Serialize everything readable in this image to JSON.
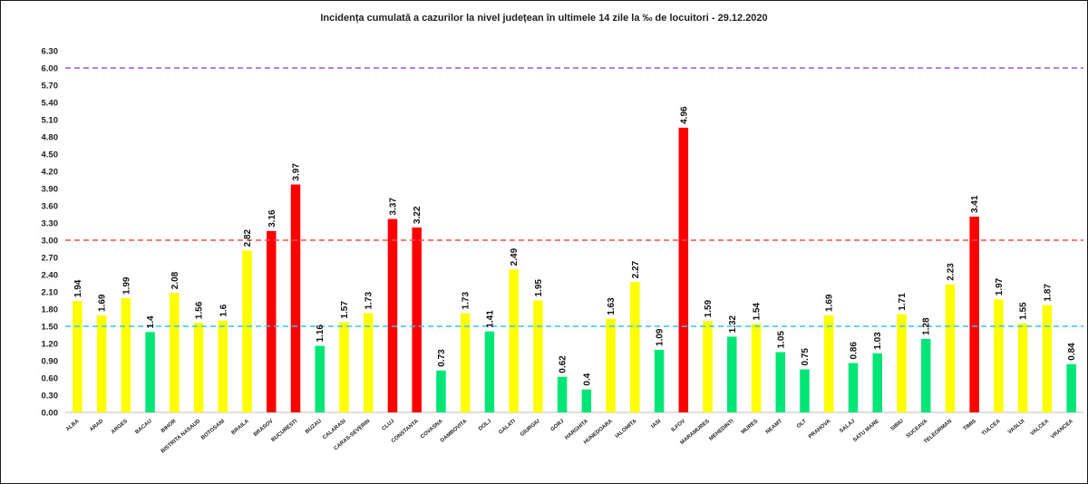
{
  "chart_data": {
    "type": "bar",
    "title": "Incidența cumulată a cazurilor la nivel județean în ultimele 14 zile   la ‰ de locuitori  - 29.12.2020",
    "xlabel": "",
    "ylabel": "",
    "ylim": [
      0,
      6.3
    ],
    "yticks": [
      "0.00",
      "0.30",
      "0.60",
      "0.90",
      "1.20",
      "1.50",
      "1.80",
      "2.10",
      "2.40",
      "2.70",
      "3.00",
      "3.30",
      "3.60",
      "3.90",
      "4.20",
      "4.50",
      "4.80",
      "5.10",
      "5.40",
      "5.70",
      "6.00",
      "6.30"
    ],
    "grid": false,
    "legend": "none",
    "categories": [
      "ALBA",
      "ARAD",
      "ARGES",
      "BACAU",
      "BIHOR",
      "BISTRITA NASAUD",
      "BOTOSANI",
      "BRAILA",
      "BRASOV",
      "BUCURESTI",
      "BUZAU",
      "CALARASI",
      "CARAS-SEVERIN",
      "CLUJ",
      "CONSTANTA",
      "COVASNA",
      "DAMBOVITA",
      "DOLJ",
      "GALATI",
      "GIURGIU",
      "GORJ",
      "HARGHITA",
      "HUNEDOARA",
      "IALOMITA",
      "IASI",
      "ILFOV",
      "MARAMURES",
      "MEHEDINTI",
      "MURES",
      "NEAMT",
      "OLT",
      "PRAHOVA",
      "SALAJ",
      "SATU MARE",
      "SIBIU",
      "SUCEAVA",
      "TELEORMAN",
      "TIMIS",
      "TULCEA",
      "VASLUI",
      "VALCEA",
      "VRANCEA"
    ],
    "values": [
      1.94,
      1.69,
      1.99,
      1.4,
      2.08,
      1.56,
      1.6,
      2.82,
      3.16,
      3.97,
      1.16,
      1.57,
      1.73,
      3.37,
      3.22,
      0.73,
      1.73,
      1.41,
      2.49,
      1.95,
      0.62,
      0.4,
      1.63,
      2.27,
      1.09,
      4.96,
      1.59,
      1.32,
      1.54,
      1.05,
      0.75,
      1.69,
      0.86,
      1.03,
      1.71,
      1.28,
      2.23,
      3.41,
      1.97,
      1.55,
      1.87,
      0.84
    ],
    "value_labels": [
      "1.94",
      "1.69",
      "1.99",
      "1.4",
      "2.08",
      "1.56",
      "1.6",
      "2.82",
      "3.16",
      "3.97",
      "1.16",
      "1.57",
      "1.73",
      "3.37",
      "3.22",
      "0.73",
      "1.73",
      "1.41",
      "2.49",
      "1.95",
      "0.62",
      "0.4",
      "1.63",
      "2.27",
      "1.09",
      "4.96",
      "1.59",
      "1.32",
      "1.54",
      "1.05",
      "0.75",
      "1.69",
      "0.86",
      "1.03",
      "1.71",
      "1.28",
      "2.23",
      "3.41",
      "1.97",
      "1.55",
      "1.87",
      "0.84"
    ],
    "bar_colors": [
      "yellow",
      "yellow",
      "yellow",
      "green",
      "yellow",
      "yellow",
      "yellow",
      "yellow",
      "red",
      "red",
      "green",
      "yellow",
      "yellow",
      "red",
      "red",
      "green",
      "yellow",
      "green",
      "yellow",
      "yellow",
      "green",
      "green",
      "yellow",
      "yellow",
      "green",
      "red",
      "yellow",
      "green",
      "yellow",
      "green",
      "green",
      "yellow",
      "green",
      "green",
      "yellow",
      "green",
      "yellow",
      "red",
      "yellow",
      "yellow",
      "yellow",
      "green"
    ],
    "palette": {
      "yellow": "#ffff00",
      "green": "#00e676",
      "red": "#ff0000"
    },
    "reference_lines": [
      {
        "value": 6.0,
        "color": "#9b59d0",
        "style": "dashed"
      },
      {
        "value": 3.0,
        "color": "#ff4d4d",
        "style": "dashed"
      },
      {
        "value": 1.5,
        "color": "#33c3f0",
        "style": "dashed"
      }
    ]
  }
}
